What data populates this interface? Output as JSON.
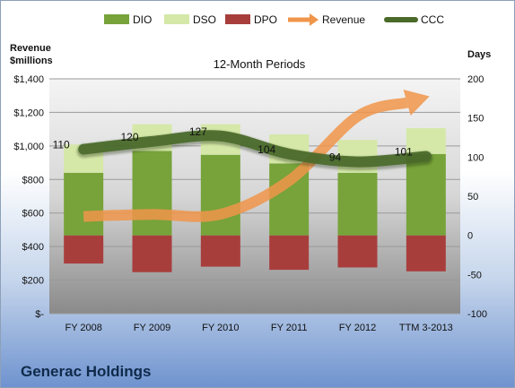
{
  "company": "Generac Holdings",
  "chart_data": {
    "type": "bar",
    "title": "12-Month Periods",
    "categories": [
      "FY 2008",
      "FY 2009",
      "FY 2010",
      "FY 2011",
      "FY 2012",
      "TTM 3-2013"
    ],
    "legend": {
      "placement": "top",
      "entries": [
        {
          "name": "DIO",
          "color": "#77a33a",
          "shape": "box"
        },
        {
          "name": "DSO",
          "color": "#d5e8a8",
          "shape": "box"
        },
        {
          "name": "DPO",
          "color": "#a83e3c",
          "shape": "box"
        },
        {
          "name": "Revenue",
          "color": "#f0954a",
          "shape": "arrow"
        },
        {
          "name": "CCC",
          "color": "#4a6a2a",
          "shape": "line"
        }
      ]
    },
    "left_axis": {
      "label_line1": "Revenue",
      "label_line2": "$millions",
      "range": [
        0,
        1400
      ],
      "ticks": [
        0,
        200,
        400,
        600,
        800,
        1000,
        1200,
        1400
      ],
      "tick_labels": [
        "$-",
        "$200",
        "$400",
        "$600",
        "$800",
        "$1,000",
        "$1,200",
        "$1,400"
      ]
    },
    "right_axis": {
      "label": "Days",
      "range": [
        -100,
        200
      ],
      "ticks": [
        -100,
        -50,
        0,
        50,
        100,
        150,
        200
      ],
      "tick_labels": [
        "-100",
        "-50",
        "0",
        "50",
        "100",
        "150",
        "200"
      ]
    },
    "grid": true,
    "series": [
      {
        "name": "DIO",
        "axis": "right",
        "color": "#77a33a",
        "values": [
          80,
          108,
          103,
          92,
          80,
          104
        ]
      },
      {
        "name": "DSO",
        "axis": "right",
        "color": "#d5e8a8",
        "values": [
          36,
          34,
          39,
          37,
          42,
          33
        ]
      },
      {
        "name": "DPO",
        "axis": "right",
        "color": "#a83e3c",
        "values": [
          -36,
          -47,
          -40,
          -44,
          -41,
          -46
        ]
      },
      {
        "name": "Revenue",
        "axis": "left",
        "color": "#f0954a",
        "values": [
          580,
          592,
          593,
          792,
          1176,
          1290
        ]
      },
      {
        "name": "CCC",
        "axis": "right",
        "color": "#4a6a2a",
        "values": [
          110,
          120,
          127,
          104,
          94,
          101
        ]
      }
    ],
    "data_labels": [
      "110",
      "120",
      "127",
      "104",
      "94",
      "101"
    ]
  }
}
